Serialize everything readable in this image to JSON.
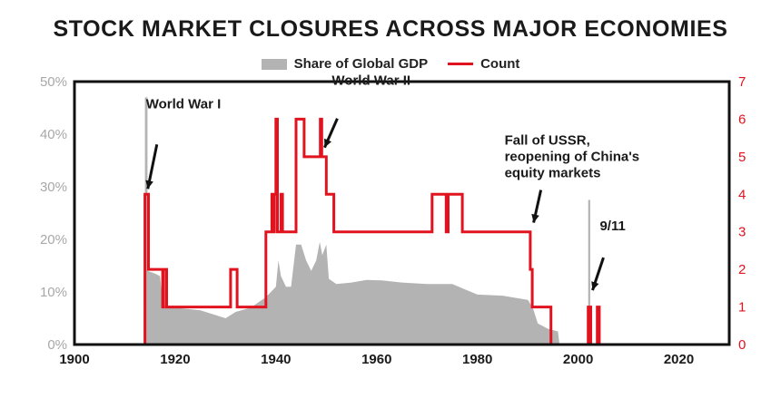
{
  "chart_data": {
    "type": "area",
    "title": "STOCK MARKET CLOSURES ACROSS MAJOR ECONOMIES",
    "legend": [
      {
        "name": "Share of Global GDP",
        "color": "#b3b3b3",
        "kind": "area"
      },
      {
        "name": "Count",
        "color": "#e0131f",
        "kind": "line"
      }
    ],
    "legend_position": "top-center",
    "grid": false,
    "x_axis": {
      "range": [
        1900,
        2030
      ],
      "ticks": [
        1900,
        1920,
        1940,
        1960,
        1980,
        2000,
        2020
      ]
    },
    "y_left": {
      "range": [
        0,
        50
      ],
      "ticks": [
        "0%",
        "10%",
        "20%",
        "30%",
        "40%",
        "50%"
      ]
    },
    "y_right": {
      "range": [
        0,
        7
      ],
      "ticks": [
        "0",
        "1",
        "2",
        "3",
        "4",
        "5",
        "6",
        "7"
      ]
    },
    "series": [
      {
        "name": "Share of Global GDP",
        "axis": "left",
        "points": [
          [
            1914.0,
            0
          ],
          [
            1914.0,
            47
          ],
          [
            1914.5,
            47
          ],
          [
            1914.5,
            14
          ],
          [
            1916,
            13.5
          ],
          [
            1917,
            13
          ],
          [
            1917.5,
            7.5
          ],
          [
            1920,
            7
          ],
          [
            1925,
            6.5
          ],
          [
            1930,
            5
          ],
          [
            1932,
            6.2
          ],
          [
            1935,
            7
          ],
          [
            1938,
            9
          ],
          [
            1939,
            10
          ],
          [
            1940,
            11
          ],
          [
            1940.5,
            16
          ],
          [
            1941,
            13
          ],
          [
            1942,
            11
          ],
          [
            1943,
            11
          ],
          [
            1944,
            19
          ],
          [
            1945,
            19
          ],
          [
            1946,
            16
          ],
          [
            1947,
            14
          ],
          [
            1948,
            16
          ],
          [
            1948.7,
            19.5
          ],
          [
            1949.2,
            17
          ],
          [
            1950,
            19
          ],
          [
            1950.5,
            12.5
          ],
          [
            1952,
            11.5
          ],
          [
            1955,
            11.8
          ],
          [
            1958,
            12.3
          ],
          [
            1961,
            12.2
          ],
          [
            1965,
            11.8
          ],
          [
            1970,
            11.5
          ],
          [
            1975,
            11.5
          ],
          [
            1980,
            9.5
          ],
          [
            1985,
            9.3
          ],
          [
            1990,
            8.5
          ],
          [
            1991,
            7
          ],
          [
            1992,
            4
          ],
          [
            1994,
            3
          ],
          [
            1996,
            2.5
          ],
          [
            1996.3,
            0
          ],
          [
            2002.0,
            0
          ],
          [
            2002.0,
            27.5
          ],
          [
            2002.4,
            27.5
          ],
          [
            2002.4,
            0
          ]
        ]
      },
      {
        "name": "Count",
        "axis": "right",
        "points": [
          [
            1914.0,
            0
          ],
          [
            1914.0,
            4
          ],
          [
            1914.7,
            4
          ],
          [
            1914.7,
            2
          ],
          [
            1917.5,
            2
          ],
          [
            1917.5,
            1
          ],
          [
            1917.7,
            1
          ],
          [
            1917.7,
            2
          ],
          [
            1918.3,
            2
          ],
          [
            1918.3,
            1
          ],
          [
            1931.0,
            1
          ],
          [
            1931.0,
            2
          ],
          [
            1932.3,
            2
          ],
          [
            1932.3,
            1
          ],
          [
            1938.0,
            1
          ],
          [
            1938.0,
            3
          ],
          [
            1939.2,
            3
          ],
          [
            1939.2,
            4
          ],
          [
            1939.4,
            4
          ],
          [
            1939.4,
            3
          ],
          [
            1939.7,
            3
          ],
          [
            1939.7,
            4
          ],
          [
            1940.0,
            4
          ],
          [
            1940.0,
            6
          ],
          [
            1940.3,
            6
          ],
          [
            1940.3,
            3
          ],
          [
            1941.0,
            3
          ],
          [
            1941.0,
            4
          ],
          [
            1941.3,
            4
          ],
          [
            1941.3,
            3
          ],
          [
            1944.0,
            3
          ],
          [
            1944.0,
            6
          ],
          [
            1945.6,
            6
          ],
          [
            1945.6,
            5
          ],
          [
            1948.8,
            5
          ],
          [
            1948.8,
            6
          ],
          [
            1949.1,
            6
          ],
          [
            1949.1,
            5
          ],
          [
            1950.0,
            5
          ],
          [
            1950.0,
            4
          ],
          [
            1951.5,
            4
          ],
          [
            1951.5,
            3
          ],
          [
            1971.0,
            3
          ],
          [
            1971.0,
            4
          ],
          [
            1973.8,
            4
          ],
          [
            1973.8,
            3
          ],
          [
            1974.2,
            3
          ],
          [
            1974.2,
            4
          ],
          [
            1977.0,
            4
          ],
          [
            1977.0,
            3
          ],
          [
            1990.5,
            3
          ],
          [
            1990.5,
            2
          ],
          [
            1990.9,
            2
          ],
          [
            1990.9,
            1
          ],
          [
            1994.6,
            1
          ],
          [
            1994.6,
            0
          ],
          [
            2002.0,
            0
          ],
          [
            2002.0,
            1
          ],
          [
            2002.5,
            1
          ],
          [
            2002.5,
            0
          ],
          [
            2003.8,
            0
          ],
          [
            2003.8,
            1
          ],
          [
            2004.2,
            1
          ],
          [
            2004.2,
            0
          ],
          [
            2030,
            0
          ]
        ]
      }
    ],
    "annotations": [
      {
        "lines": [
          "World War I"
        ],
        "x": 1914.2,
        "y_right": 4
      },
      {
        "lines": [
          "World War II"
        ],
        "x": 1949.3,
        "y_right": 5.1
      },
      {
        "lines": [
          "Fall of USSR,",
          "reopening of China's",
          "equity markets"
        ],
        "x": 1990.8,
        "y_right": 3.1
      },
      {
        "lines": [
          "9/11"
        ],
        "x": 2002.5,
        "y_right": 1.3
      }
    ]
  }
}
